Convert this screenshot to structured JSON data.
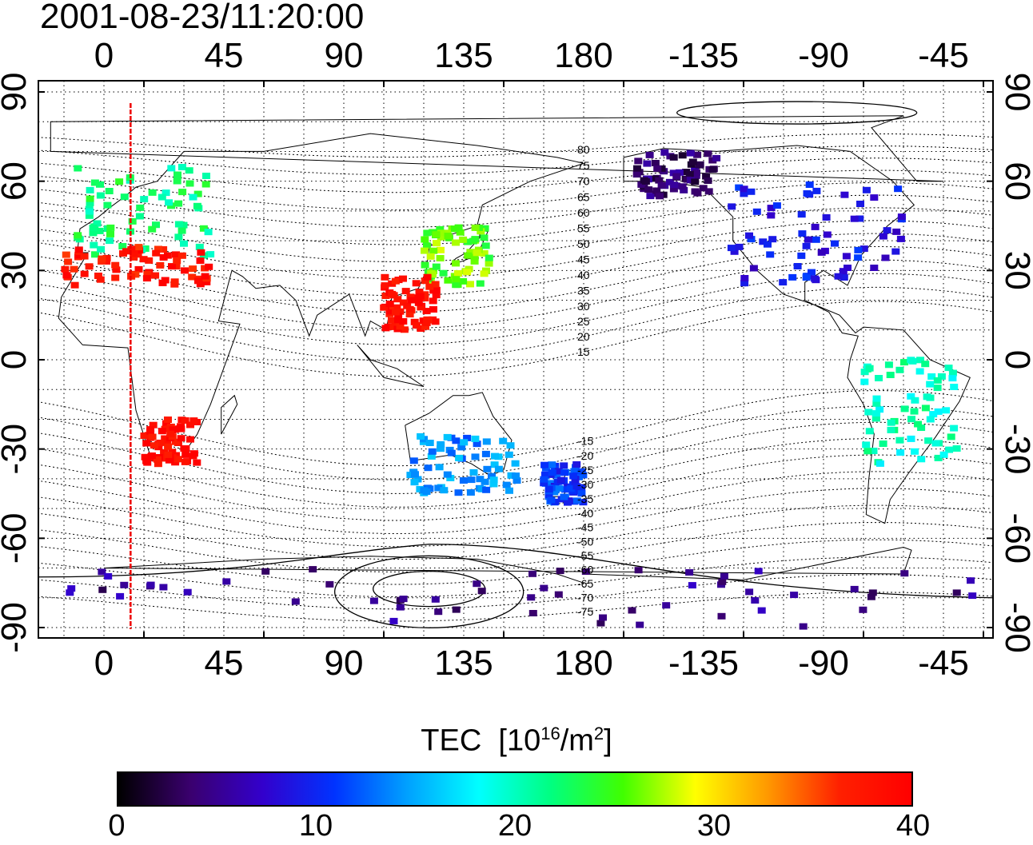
{
  "title": "2001-08-23/11:20:00",
  "map": {
    "lon_ticks": [
      "0",
      "45",
      "90",
      "135",
      "180",
      "-135",
      "-90",
      "-45"
    ],
    "lat_ticks": [
      "90",
      "60",
      "30",
      "0",
      "-30",
      "-60",
      "-90"
    ],
    "marker_longitude": 10,
    "magnetic_lat_labels": [
      "80",
      "75",
      "70",
      "65",
      "60",
      "55",
      "50",
      "45",
      "40",
      "35",
      "30",
      "25",
      "20",
      "15",
      "-15",
      "-20",
      "-25",
      "-30",
      "-35",
      "-40",
      "-45",
      "-50",
      "-55",
      "-60",
      "-65",
      "-70",
      "-75"
    ],
    "tec_regions": [
      {
        "name": "north-america",
        "lon": [
          -125,
          -60
        ],
        "lat": [
          25,
          60
        ],
        "tec": 9
      },
      {
        "name": "alaska",
        "lon": [
          -160,
          -130
        ],
        "lat": [
          55,
          70
        ],
        "tec": 4
      },
      {
        "name": "europe",
        "lon": [
          -10,
          40
        ],
        "lat": [
          35,
          65
        ],
        "tec": 22
      },
      {
        "name": "mediterranean",
        "lon": [
          -15,
          40
        ],
        "lat": [
          25,
          38
        ],
        "tec": 38
      },
      {
        "name": "east-asia",
        "lon": [
          120,
          145
        ],
        "lat": [
          25,
          45
        ],
        "tec": 26
      },
      {
        "name": "south-china",
        "lon": [
          105,
          125
        ],
        "lat": [
          10,
          28
        ],
        "tec": 39
      },
      {
        "name": "southern-africa",
        "lon": [
          15,
          35
        ],
        "lat": [
          -35,
          -20
        ],
        "tec": 39
      },
      {
        "name": "australia",
        "lon": [
          115,
          155
        ],
        "lat": [
          -45,
          -25
        ],
        "tec": 14
      },
      {
        "name": "new-zealand",
        "lon": [
          165,
          180
        ],
        "lat": [
          -48,
          -35
        ],
        "tec": 11
      },
      {
        "name": "south-america",
        "lon": [
          -75,
          -40
        ],
        "lat": [
          -35,
          0
        ],
        "tec": 20
      },
      {
        "name": "antarctica",
        "lon": [
          -180,
          180
        ],
        "lat": [
          -90,
          -70
        ],
        "tec": 5
      }
    ]
  },
  "colorbar": {
    "title": "TEC",
    "unit_base": "[10",
    "unit_exp": "16",
    "unit_mid": "/m",
    "unit_exp2": "2",
    "unit_end": "]",
    "min": 0,
    "max": 40,
    "tick_labels": [
      "0",
      "10",
      "20",
      "30",
      "40"
    ],
    "colors": [
      "#000000",
      "#3a006e",
      "#3300cc",
      "#0033ff",
      "#00a0ff",
      "#00ffff",
      "#00ff80",
      "#40ff00",
      "#ffff00",
      "#ff9900",
      "#ff2000",
      "#ff0000"
    ]
  }
}
